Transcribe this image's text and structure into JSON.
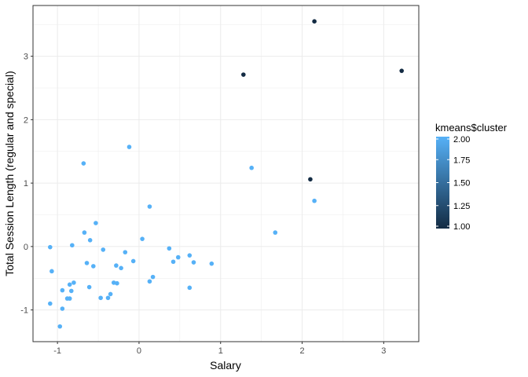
{
  "chart_data": {
    "type": "scatter",
    "xlabel": "Salary",
    "ylabel": "Total Session Length (regular and special)",
    "xlim": [
      -1.3,
      3.43
    ],
    "ylim": [
      -1.5,
      3.8
    ],
    "x_ticks": [
      -1,
      0,
      1,
      2,
      3
    ],
    "x_tick_labels": [
      "-1",
      "0",
      "1",
      "2",
      "3"
    ],
    "y_ticks": [
      -1,
      0,
      1,
      2,
      3
    ],
    "y_tick_labels": [
      "-1",
      "0",
      "1",
      "2",
      "3"
    ],
    "grid": true,
    "legend": {
      "title": "kmeans$cluster",
      "position": "right",
      "type": "colorbar",
      "range": [
        1.0,
        2.0
      ],
      "breaks": [
        1.0,
        1.25,
        1.5,
        1.75,
        2.0
      ],
      "break_labels": [
        "1.00",
        "1.25",
        "1.50",
        "1.75",
        "2.00"
      ],
      "color_low": "#132B43",
      "color_high": "#56B1F7"
    },
    "points": [
      {
        "x": 2.15,
        "y": 3.55,
        "cluster": 1
      },
      {
        "x": 3.22,
        "y": 2.77,
        "cluster": 1
      },
      {
        "x": 1.28,
        "y": 2.71,
        "cluster": 1
      },
      {
        "x": 2.1,
        "y": 1.06,
        "cluster": 1
      },
      {
        "x": -0.12,
        "y": 1.57,
        "cluster": 2
      },
      {
        "x": 1.38,
        "y": 1.24,
        "cluster": 2
      },
      {
        "x": -0.68,
        "y": 1.31,
        "cluster": 2
      },
      {
        "x": 2.15,
        "y": 0.72,
        "cluster": 2
      },
      {
        "x": 0.13,
        "y": 0.63,
        "cluster": 2
      },
      {
        "x": -0.53,
        "y": 0.37,
        "cluster": 2
      },
      {
        "x": -0.67,
        "y": 0.22,
        "cluster": 2
      },
      {
        "x": 1.67,
        "y": 0.22,
        "cluster": 2
      },
      {
        "x": -0.6,
        "y": 0.1,
        "cluster": 2
      },
      {
        "x": 0.04,
        "y": 0.12,
        "cluster": 2
      },
      {
        "x": -0.82,
        "y": 0.02,
        "cluster": 2
      },
      {
        "x": -1.09,
        "y": -0.01,
        "cluster": 2
      },
      {
        "x": -0.44,
        "y": -0.05,
        "cluster": 2
      },
      {
        "x": 0.37,
        "y": -0.03,
        "cluster": 2
      },
      {
        "x": -0.17,
        "y": -0.09,
        "cluster": 2
      },
      {
        "x": 0.62,
        "y": -0.14,
        "cluster": 2
      },
      {
        "x": 0.48,
        "y": -0.17,
        "cluster": 2
      },
      {
        "x": -0.07,
        "y": -0.23,
        "cluster": 2
      },
      {
        "x": 0.42,
        "y": -0.24,
        "cluster": 2
      },
      {
        "x": 0.67,
        "y": -0.25,
        "cluster": 2
      },
      {
        "x": 0.89,
        "y": -0.27,
        "cluster": 2
      },
      {
        "x": -0.64,
        "y": -0.26,
        "cluster": 2
      },
      {
        "x": -0.56,
        "y": -0.31,
        "cluster": 2
      },
      {
        "x": -0.28,
        "y": -0.3,
        "cluster": 2
      },
      {
        "x": -0.22,
        "y": -0.34,
        "cluster": 2
      },
      {
        "x": -1.07,
        "y": -0.39,
        "cluster": 2
      },
      {
        "x": 0.17,
        "y": -0.48,
        "cluster": 2
      },
      {
        "x": 0.13,
        "y": -0.55,
        "cluster": 2
      },
      {
        "x": -0.31,
        "y": -0.57,
        "cluster": 2
      },
      {
        "x": -0.27,
        "y": -0.58,
        "cluster": 2
      },
      {
        "x": -0.8,
        "y": -0.57,
        "cluster": 2
      },
      {
        "x": -0.85,
        "y": -0.6,
        "cluster": 2
      },
      {
        "x": -0.61,
        "y": -0.64,
        "cluster": 2
      },
      {
        "x": 0.62,
        "y": -0.65,
        "cluster": 2
      },
      {
        "x": -0.94,
        "y": -0.69,
        "cluster": 2
      },
      {
        "x": -0.83,
        "y": -0.7,
        "cluster": 2
      },
      {
        "x": -0.35,
        "y": -0.75,
        "cluster": 2
      },
      {
        "x": -0.47,
        "y": -0.81,
        "cluster": 2
      },
      {
        "x": -0.38,
        "y": -0.81,
        "cluster": 2
      },
      {
        "x": -0.88,
        "y": -0.82,
        "cluster": 2
      },
      {
        "x": -0.85,
        "y": -0.82,
        "cluster": 2
      },
      {
        "x": -1.09,
        "y": -0.9,
        "cluster": 2
      },
      {
        "x": -0.94,
        "y": -0.98,
        "cluster": 2
      },
      {
        "x": -0.97,
        "y": -1.26,
        "cluster": 2
      }
    ]
  }
}
